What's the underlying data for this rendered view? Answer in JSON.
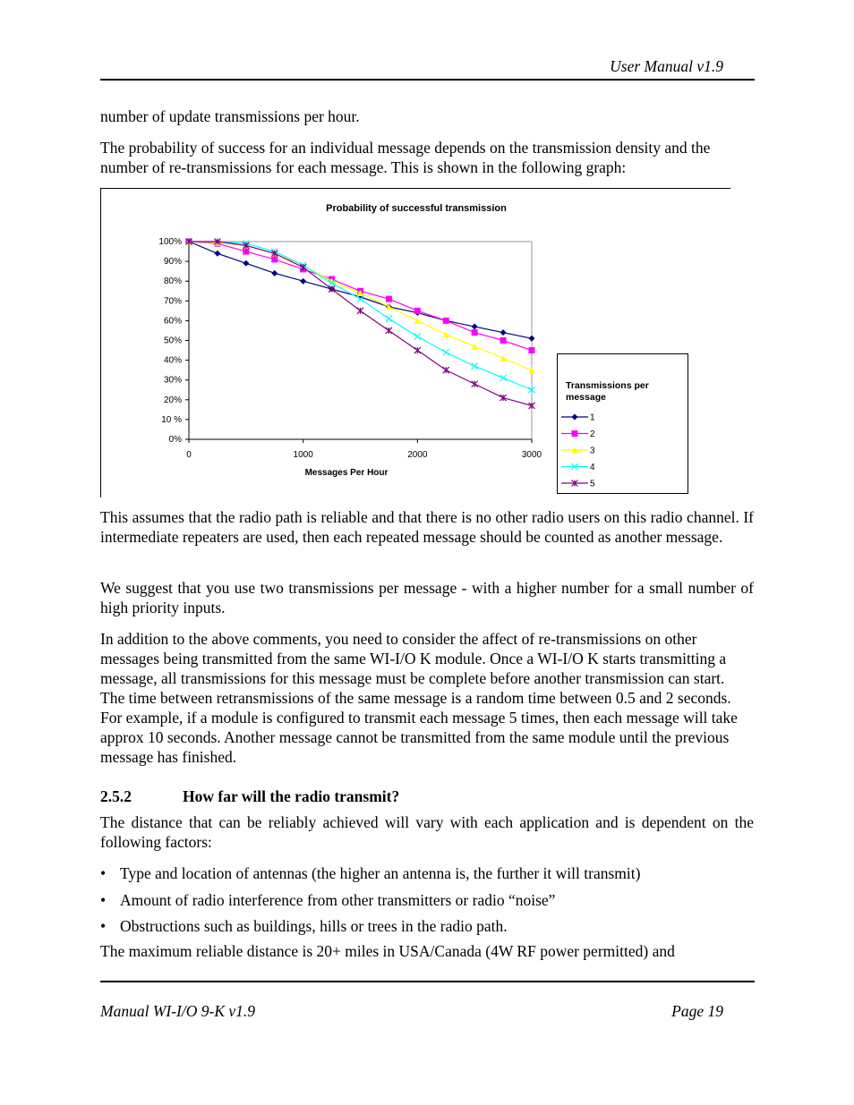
{
  "header": {
    "title": "User Manual v1.9"
  },
  "paragraphs": [
    "number of update transmissions per hour.",
    "The probability of success for an individual message depends on the transmission density and the number of re-transmissions for each message. This is shown in the following graph:"
  ],
  "chart_data": {
    "type": "line",
    "title": "Probability of successful transmission",
    "x_label": "Messages Per Hour",
    "legend_title": "Transmissions per message",
    "legend": "right",
    "x": [
      0,
      250,
      500,
      750,
      1000,
      1250,
      1500,
      1750,
      2000,
      2250,
      2500,
      2750,
      3000
    ],
    "xlim": [
      0,
      3000
    ],
    "xticks": [
      0,
      1000,
      2000,
      3000
    ],
    "ylim": [
      0,
      100
    ],
    "yticks": [
      {
        "value": 0,
        "label": "0%"
      },
      {
        "value": 10,
        "label": "10 %"
      },
      {
        "value": 20,
        "label": "20%"
      },
      {
        "value": 30,
        "label": "30%"
      },
      {
        "value": 40,
        "label": "40%"
      },
      {
        "value": 50,
        "label": "50%"
      },
      {
        "value": 60,
        "label": "60%"
      },
      {
        "value": 70,
        "label": "70%"
      },
      {
        "value": 80,
        "label": "80%"
      },
      {
        "value": 90,
        "label": "90%"
      },
      {
        "value": 100,
        "label": "100%"
      }
    ],
    "series": [
      {
        "name": "1",
        "color": "#000080",
        "marker": "diamond",
        "values": [
          100,
          94,
          89,
          84,
          80,
          76,
          72,
          67,
          64,
          60,
          57,
          54,
          51
        ]
      },
      {
        "name": "2",
        "color": "#ff00ff",
        "marker": "square",
        "values": [
          100,
          99,
          95,
          91,
          86,
          81,
          75,
          71,
          65,
          60,
          54,
          50,
          45
        ]
      },
      {
        "name": "3",
        "color": "#ffff00",
        "marker": "triangle",
        "values": [
          100,
          99.5,
          98,
          94,
          88,
          80,
          74,
          67,
          60,
          53,
          47,
          41,
          35
        ]
      },
      {
        "name": "4",
        "color": "#00ffff",
        "marker": "x",
        "values": [
          100,
          100,
          99,
          95,
          88,
          79,
          71,
          61,
          52,
          44,
          37,
          31,
          25
        ]
      },
      {
        "name": "5",
        "color": "#800080",
        "marker": "star",
        "values": [
          100,
          100,
          98,
          94,
          87,
          76,
          65,
          55,
          45,
          35,
          28,
          21,
          17
        ]
      }
    ]
  },
  "after_chart": [
    "This assumes that the radio path is reliable and that there is no other radio users on this radio channel.  If intermediate repeaters are used,  then each repeated message should be counted as another message.",
    "We suggest that you use two transmissions per message  -  with a higher number for a small number of high priority inputs.",
    "In addition to the above comments,  you need to consider the affect of re-transmissions on other messages being transmitted from the same WI-I/O K module.  Once a WI-I/O K starts transmitting a message,  all transmissions for this message must be complete before another transmission can start.  The time between retransmissions of the same message is a random time between 0.5 and 2 seconds.  For example,  if a module is configured to transmit each message 5 times,  then each message will take approx 10 seconds.  Another message cannot be transmitted from the same module until the previous message has finished."
  ],
  "section": {
    "number": "2.5.2",
    "title": "How far will the radio transmit?",
    "intro": "The distance that can be reliably achieved will vary with each application and is dependent on the following factors:",
    "bullets": [
      "Type and location of antennas (the higher an antenna is, the further it will transmit)",
      "Amount of radio interference from other transmitters or radio “noise”",
      "Obstructions such as buildings, hills or trees in the radio path."
    ],
    "closing": "The maximum reliable distance is 20+ miles in USA/Canada (4W RF power permitted) and"
  },
  "footer": {
    "left": "Manual WI-I/O 9-K v1.9",
    "right": "Page 19"
  }
}
